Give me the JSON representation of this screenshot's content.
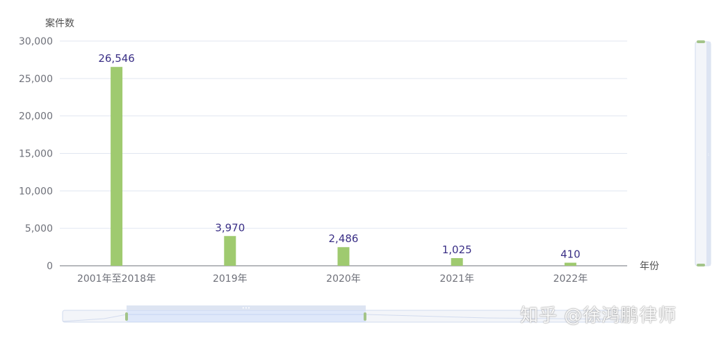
{
  "chart_data": {
    "type": "bar",
    "ylabel": "案件数",
    "xlabel": "年份",
    "categories": [
      "2001年至2018年",
      "2019年",
      "2020年",
      "2021年",
      "2022年"
    ],
    "values": [
      26546,
      3970,
      2486,
      1025,
      410
    ],
    "value_labels": [
      "26,546",
      "3,970",
      "2,486",
      "1,025",
      "410"
    ],
    "ylim": [
      0,
      30000
    ],
    "yticks": [
      0,
      5000,
      10000,
      15000,
      20000,
      25000,
      30000
    ],
    "ytick_labels": [
      "0",
      "5,000",
      "10,000",
      "15,000",
      "20,000",
      "25,000",
      "30,000"
    ],
    "bar_color": "#9fca6f",
    "label_color": "#3a2f86",
    "grid": true
  },
  "watermark": "知乎 @徐鸿鹏律师"
}
